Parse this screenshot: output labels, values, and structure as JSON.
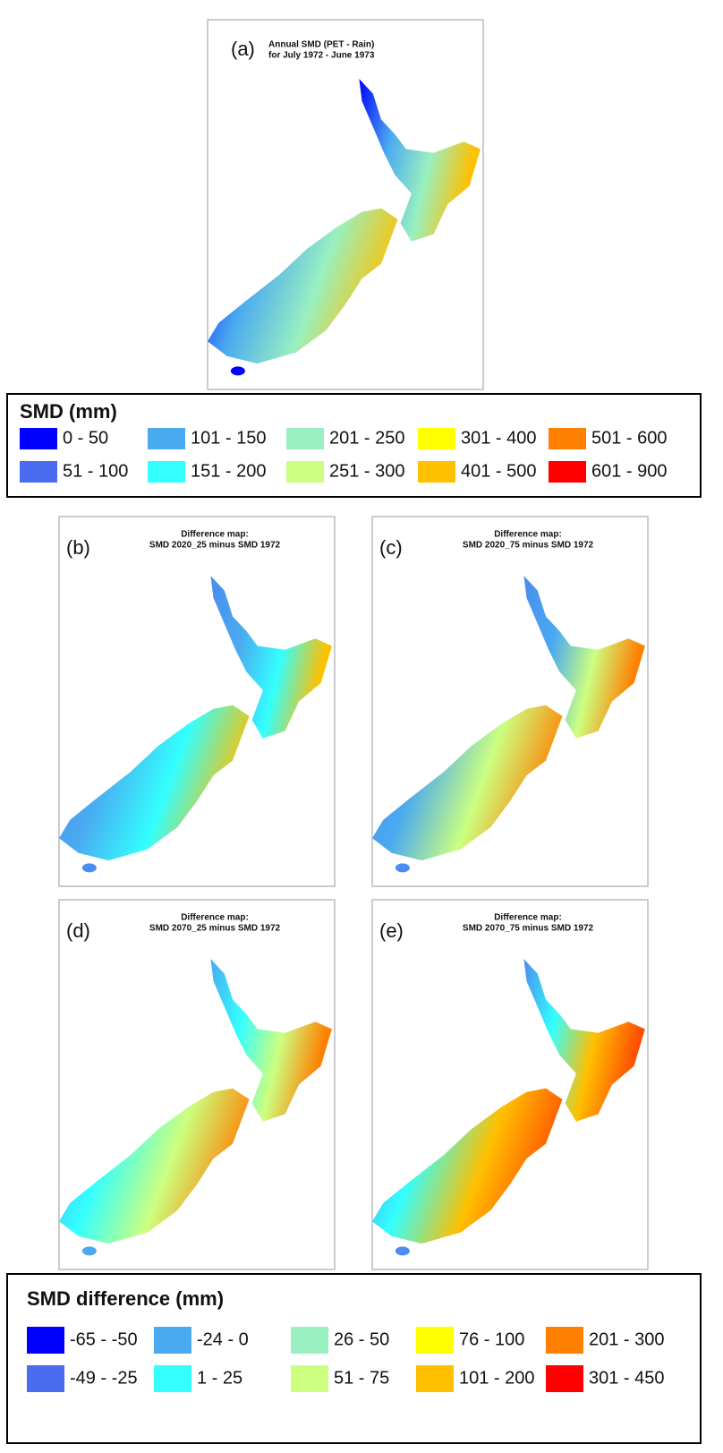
{
  "panels": [
    {
      "label": "(a)",
      "title_lines": [
        "Annual SMD (PET - Rain)",
        "for July 1972 - June 1973"
      ]
    },
    {
      "label": "(b)",
      "title_lines": [
        "Difference map:",
        "SMD 2020_25 minus SMD 1972"
      ]
    },
    {
      "label": "(c)",
      "title_lines": [
        "Difference map:",
        "SMD 2020_75 minus SMD 1972"
      ]
    },
    {
      "label": "(d)",
      "title_lines": [
        "Difference map:",
        "SMD 2070_25 minus SMD 1972"
      ]
    },
    {
      "label": "(e)",
      "title_lines": [
        "Difference map:",
        "SMD 2070_75 minus SMD 1972"
      ]
    }
  ],
  "legends": [
    {
      "title": "SMD (mm)",
      "items": [
        {
          "label": "0 - 50",
          "color": "#0000ff"
        },
        {
          "label": "51 - 100",
          "color": "#4a6cf0"
        },
        {
          "label": "101 - 150",
          "color": "#4aaaf0"
        },
        {
          "label": "151 - 200",
          "color": "#33ffff"
        },
        {
          "label": "201 - 250",
          "color": "#99f0c0"
        },
        {
          "label": "251 - 300",
          "color": "#ccff80"
        },
        {
          "label": "301 - 400",
          "color": "#ffff00"
        },
        {
          "label": "401 - 500",
          "color": "#ffc000"
        },
        {
          "label": "501 - 600",
          "color": "#ff8000"
        },
        {
          "label": "601 - 900",
          "color": "#ff0000"
        }
      ]
    },
    {
      "title": "SMD difference (mm)",
      "items": [
        {
          "label": "-65 - -50",
          "color": "#0000ff"
        },
        {
          "label": "-49 - -25",
          "color": "#4a6cf0"
        },
        {
          "label": "-24 - 0",
          "color": "#4aaaf0"
        },
        {
          "label": "1 - 25",
          "color": "#33ffff"
        },
        {
          "label": "26 - 50",
          "color": "#99f0c0"
        },
        {
          "label": "51 - 75",
          "color": "#ccff80"
        },
        {
          "label": "76 - 100",
          "color": "#ffff00"
        },
        {
          "label": "101 - 200",
          "color": "#ffc000"
        },
        {
          "label": "201 - 300",
          "color": "#ff8000"
        },
        {
          "label": "301 - 450",
          "color": "#ff0000"
        }
      ]
    }
  ]
}
